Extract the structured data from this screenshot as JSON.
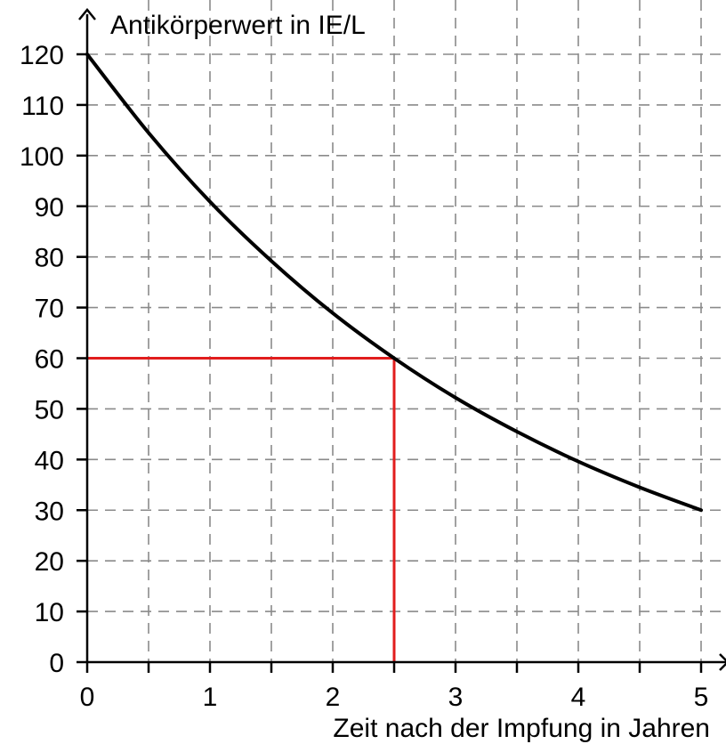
{
  "chart_data": {
    "type": "line",
    "ylabel": "Antikörperwert in IE/L",
    "xlabel": "Zeit nach der Impfung in Jahren",
    "xlim": [
      0,
      5
    ],
    "ylim": [
      0,
      120
    ],
    "x_ticks": [
      0,
      1,
      2,
      3,
      4,
      5
    ],
    "y_ticks": [
      0,
      10,
      20,
      30,
      40,
      50,
      60,
      70,
      80,
      90,
      100,
      110,
      120
    ],
    "grid": true,
    "series": [
      {
        "x": [
          0,
          0.5,
          1,
          1.5,
          2,
          2.5,
          3,
          3.5,
          4,
          4.5,
          5
        ],
        "y": [
          120,
          104.5,
          90.9,
          79.2,
          68.9,
          60,
          52.2,
          45.5,
          39.6,
          34.5,
          30
        ],
        "color": "#000000"
      }
    ],
    "annotations": [
      {
        "type": "reference-lines",
        "x": 2.5,
        "y": 60,
        "color": "#e11d1d"
      }
    ]
  }
}
